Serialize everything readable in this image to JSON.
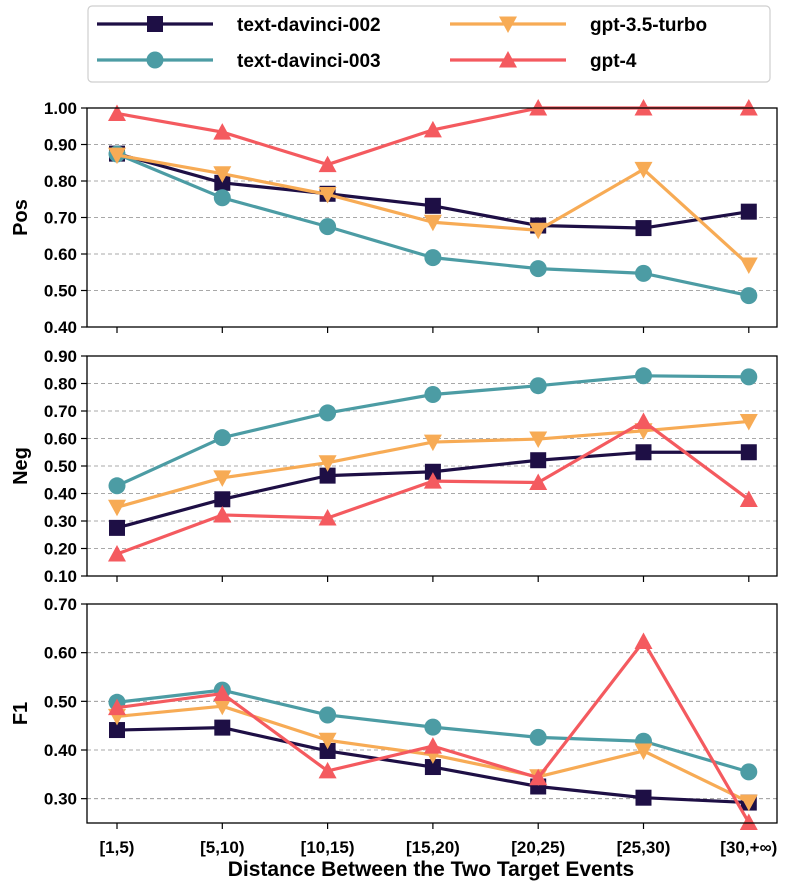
{
  "chart_data": {
    "type": "line",
    "xlabel": "Distance Between the Two Target Events",
    "categories": [
      "[1,5)",
      "[5,10)",
      "[10,15)",
      "[15,20)",
      "[20,25)",
      "[25,30)",
      "[30,+∞)"
    ],
    "series_styles": [
      {
        "name": "text-davinci-002",
        "color": "#1e0f45",
        "marker": "square"
      },
      {
        "name": "text-davinci-003",
        "color": "#4c9ca4",
        "marker": "circle"
      },
      {
        "name": "gpt-3.5-turbo",
        "color": "#f7ab55",
        "marker": "triangle-down"
      },
      {
        "name": "gpt-4",
        "color": "#f45a5f",
        "marker": "triangle-up"
      }
    ],
    "legend": {
      "position": "top-center",
      "columns": 2
    },
    "panels": [
      {
        "ylabel": "Pos",
        "ylim": [
          0.4,
          1.0
        ],
        "yticks": [
          "0.40",
          "0.50",
          "0.60",
          "0.70",
          "0.80",
          "0.90",
          "1.00"
        ],
        "grid": true,
        "series": [
          {
            "name": "text-davinci-002",
            "values": [
              0.875,
              0.795,
              0.765,
              0.732,
              0.678,
              0.671,
              0.716
            ]
          },
          {
            "name": "text-davinci-003",
            "values": [
              0.874,
              0.754,
              0.675,
              0.59,
              0.56,
              0.547,
              0.486
            ]
          },
          {
            "name": "gpt-3.5-turbo",
            "values": [
              0.871,
              0.82,
              0.763,
              0.687,
              0.665,
              0.832,
              0.57
            ]
          },
          {
            "name": "gpt-4",
            "values": [
              0.985,
              0.934,
              0.845,
              0.94,
              1.0,
              1.0,
              1.0
            ]
          }
        ]
      },
      {
        "ylabel": "Neg",
        "ylim": [
          0.1,
          0.9
        ],
        "yticks": [
          "0.10",
          "0.20",
          "0.30",
          "0.40",
          "0.50",
          "0.60",
          "0.70",
          "0.80",
          "0.90"
        ],
        "grid": true,
        "series": [
          {
            "name": "text-davinci-002",
            "values": [
              0.275,
              0.379,
              0.465,
              0.479,
              0.521,
              0.55,
              0.55
            ]
          },
          {
            "name": "text-davinci-003",
            "values": [
              0.428,
              0.603,
              0.693,
              0.76,
              0.792,
              0.828,
              0.824
            ]
          },
          {
            "name": "gpt-3.5-turbo",
            "values": [
              0.35,
              0.457,
              0.512,
              0.587,
              0.598,
              0.628,
              0.662
            ]
          },
          {
            "name": "gpt-4",
            "values": [
              0.18,
              0.322,
              0.311,
              0.445,
              0.44,
              0.662,
              0.378
            ]
          }
        ]
      },
      {
        "ylabel": "F1",
        "ylim": [
          0.25,
          0.7
        ],
        "yticks": [
          "0.30",
          "0.40",
          "0.50",
          "0.60",
          "0.70"
        ],
        "grid": true,
        "series": [
          {
            "name": "text-davinci-002",
            "values": [
              0.441,
              0.446,
              0.398,
              0.365,
              0.325,
              0.302,
              0.292
            ]
          },
          {
            "name": "text-davinci-003",
            "values": [
              0.498,
              0.523,
              0.472,
              0.447,
              0.426,
              0.418,
              0.355
            ]
          },
          {
            "name": "gpt-3.5-turbo",
            "values": [
              0.469,
              0.49,
              0.42,
              0.39,
              0.345,
              0.398,
              0.293
            ]
          },
          {
            "name": "gpt-4",
            "values": [
              0.487,
              0.516,
              0.357,
              0.408,
              0.343,
              0.623,
              0.251
            ]
          }
        ]
      }
    ]
  }
}
